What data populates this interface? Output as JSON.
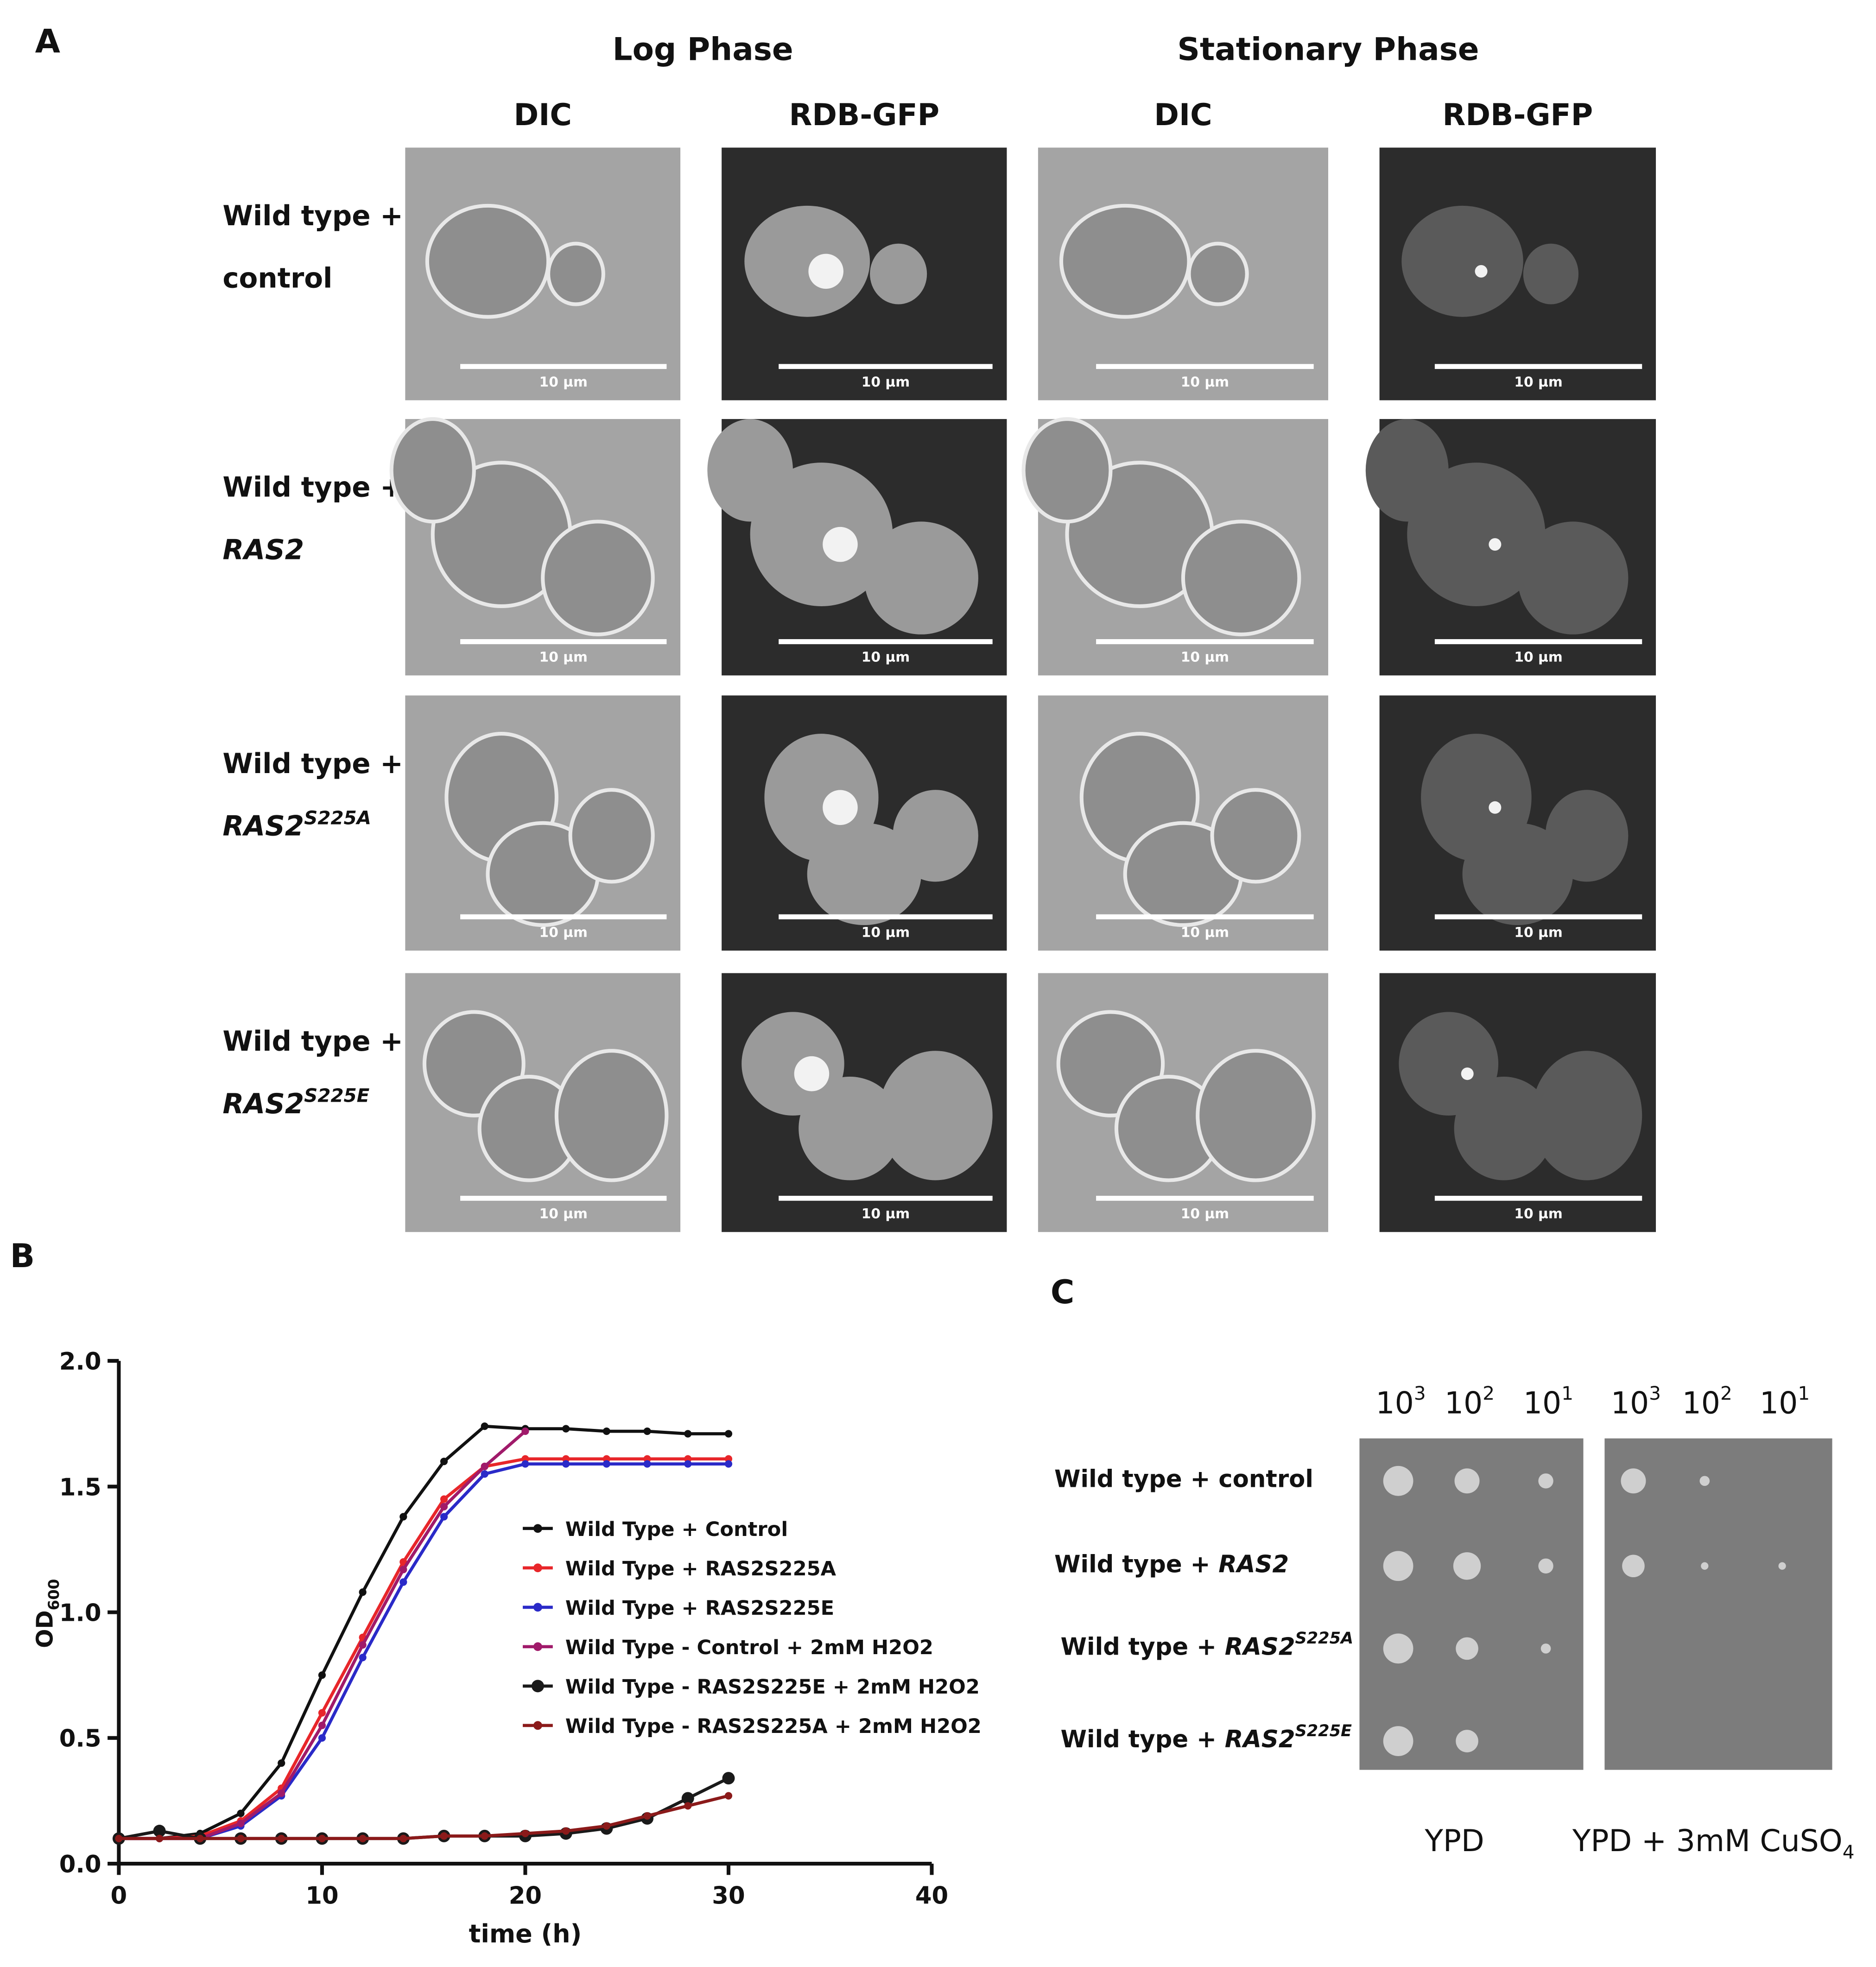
{
  "panel_labels": [
    "A",
    "B",
    "C"
  ],
  "panel_a": {
    "groups": [
      "Log Phase",
      "Stationary Phase"
    ],
    "columns": [
      "DIC",
      "RDB-GFP",
      "DIC",
      "RDB-GFP"
    ],
    "rows": [
      {
        "line1": "Wild type +",
        "line2": "control"
      },
      {
        "line1": "Wild type +",
        "line2": "RAS2"
      },
      {
        "line1": "Wild type +",
        "line2": "RAS2",
        "sup": "S225A"
      },
      {
        "line1": "Wild type +",
        "line2": "RAS2",
        "sup": "S225E"
      }
    ],
    "scale_bar": "10 µm"
  },
  "chart_data": {
    "type": "line",
    "ylabel": {
      "text": "OD",
      "sub": "600"
    },
    "xlabel": "time (h)",
    "x": [
      0,
      2,
      4,
      6,
      8,
      10,
      12,
      14,
      16,
      18,
      20,
      22,
      24,
      26,
      28,
      30
    ],
    "series": [
      {
        "name": "Wild Type + Control",
        "color": "#111111",
        "values": [
          0.1,
          0.1,
          0.12,
          0.2,
          0.4,
          0.75,
          1.08,
          1.38,
          1.6,
          1.74,
          1.73,
          1.73,
          1.72,
          1.72,
          1.71,
          1.71
        ]
      },
      {
        "name": "Wild Type + RAS2S225A",
        "color": "#e8262a",
        "values": [
          0.1,
          0.1,
          0.11,
          0.17,
          0.3,
          0.6,
          0.9,
          1.2,
          1.45,
          1.58,
          1.61,
          1.61,
          1.61,
          1.61,
          1.61,
          1.61
        ]
      },
      {
        "name": "Wild Type + RAS2S225E",
        "color": "#2a2ac8",
        "values": [
          0.1,
          0.1,
          0.1,
          0.15,
          0.27,
          0.5,
          0.82,
          1.12,
          1.38,
          1.55,
          1.59,
          1.59,
          1.59,
          1.59,
          1.59,
          1.59
        ]
      },
      {
        "name": "Wild Type - Control + 2mM H2O2",
        "color": "#a01a6a",
        "values": [
          0.1,
          0.1,
          0.1,
          0.16,
          0.28,
          0.55,
          0.87,
          1.17,
          1.42,
          1.58,
          1.72,
          null,
          null,
          null,
          null,
          null
        ]
      },
      {
        "name": "Wild Type - RAS2S225E + 2mM H2O2",
        "color": "#1a1a1a",
        "values": [
          0.1,
          0.13,
          0.1,
          0.1,
          0.1,
          0.1,
          0.1,
          0.1,
          0.11,
          0.11,
          0.11,
          0.12,
          0.14,
          0.18,
          0.26,
          0.34
        ]
      },
      {
        "name": "Wild Type - RAS2S225A + 2mM H2O2",
        "color": "#8b1a1a",
        "values": [
          0.1,
          0.1,
          0.1,
          0.1,
          0.1,
          0.1,
          0.1,
          0.1,
          0.11,
          0.11,
          0.12,
          0.13,
          0.15,
          0.19,
          0.23,
          0.27
        ]
      }
    ],
    "xlim": [
      0,
      40
    ],
    "xticks": [
      0,
      10,
      20,
      30,
      40
    ],
    "ylim": [
      0,
      2
    ],
    "yticks": [
      {
        "value": 0,
        "label": "0.0"
      },
      0.5,
      {
        "value": 1,
        "label": "1.0"
      },
      1.5,
      {
        "value": 2,
        "label": "2.0"
      }
    ]
  },
  "panel_c": {
    "dilutions": [
      {
        "base": "10",
        "exp": "3"
      },
      {
        "base": "10",
        "exp": "2"
      },
      {
        "base": "10",
        "exp": "1"
      },
      {
        "base": "10",
        "exp": "3"
      },
      {
        "base": "10",
        "exp": "2"
      },
      {
        "base": "10",
        "exp": "1"
      }
    ],
    "rows": [
      {
        "prefix": "Wild type + control"
      },
      {
        "prefix": "Wild type + ",
        "gene": "RAS2"
      },
      {
        "prefix": "Wild type + ",
        "gene": "RAS2",
        "sup": "S225A"
      },
      {
        "prefix": "Wild type + ",
        "gene": "RAS2",
        "sup": "S225E"
      }
    ],
    "media": [
      {
        "text": "YPD"
      },
      {
        "text": "YPD + 3mM CuSO",
        "sub": "4"
      }
    ]
  }
}
